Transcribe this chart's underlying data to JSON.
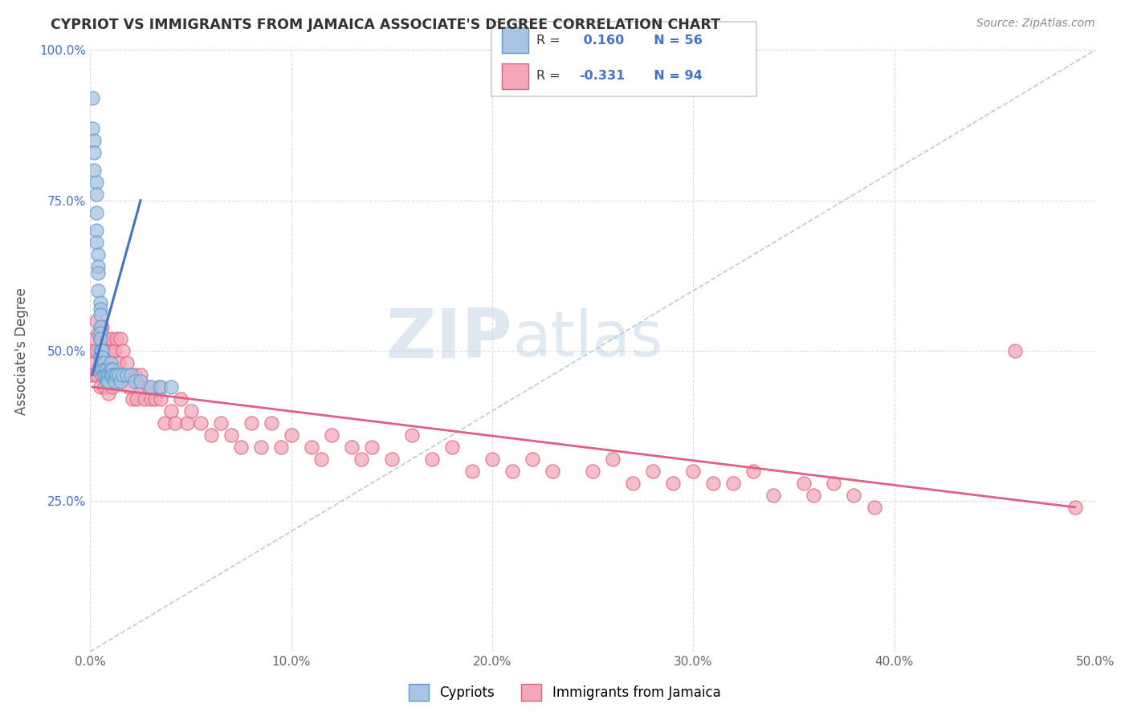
{
  "title": "CYPRIOT VS IMMIGRANTS FROM JAMAICA ASSOCIATE'S DEGREE CORRELATION CHART",
  "source": "Source: ZipAtlas.com",
  "ylabel": "Associate's Degree",
  "x_min": 0.0,
  "x_max": 0.5,
  "y_min": 0.0,
  "y_max": 1.0,
  "x_ticks": [
    0.0,
    0.1,
    0.2,
    0.3,
    0.4,
    0.5
  ],
  "x_tick_labels": [
    "0.0%",
    "10.0%",
    "20.0%",
    "30.0%",
    "40.0%",
    "50.0%"
  ],
  "y_ticks": [
    0.0,
    0.25,
    0.5,
    0.75,
    1.0
  ],
  "y_tick_labels": [
    "",
    "25.0%",
    "50.0%",
    "75.0%",
    "100.0%"
  ],
  "cypriot_color": "#a8c4e0",
  "cypriot_edge_color": "#5b9bd5",
  "jamaica_color": "#f4a7b9",
  "jamaica_edge_color": "#e06080",
  "cypriot_R": 0.16,
  "cypriot_N": 56,
  "jamaica_R": -0.331,
  "jamaica_N": 94,
  "cypriot_line_color": "#4472c4",
  "jamaica_line_color": "#e06080",
  "diagonal_color": "#b0c4de",
  "background_color": "#ffffff",
  "grid_color": "#d8d8d8",
  "legend_label_1": "Cypriots",
  "legend_label_2": "Immigrants from Jamaica",
  "cypriot_x": [
    0.001,
    0.001,
    0.002,
    0.002,
    0.002,
    0.003,
    0.003,
    0.003,
    0.003,
    0.003,
    0.004,
    0.004,
    0.004,
    0.004,
    0.005,
    0.005,
    0.005,
    0.005,
    0.005,
    0.005,
    0.005,
    0.005,
    0.006,
    0.006,
    0.006,
    0.006,
    0.006,
    0.006,
    0.007,
    0.007,
    0.007,
    0.007,
    0.008,
    0.008,
    0.008,
    0.008,
    0.009,
    0.009,
    0.01,
    0.01,
    0.01,
    0.011,
    0.011,
    0.012,
    0.012,
    0.013,
    0.014,
    0.015,
    0.016,
    0.018,
    0.02,
    0.022,
    0.025,
    0.03,
    0.035,
    0.04
  ],
  "cypriot_y": [
    0.92,
    0.87,
    0.85,
    0.83,
    0.8,
    0.78,
    0.76,
    0.73,
    0.7,
    0.68,
    0.66,
    0.64,
    0.63,
    0.6,
    0.58,
    0.57,
    0.56,
    0.54,
    0.53,
    0.52,
    0.5,
    0.49,
    0.5,
    0.5,
    0.49,
    0.48,
    0.47,
    0.47,
    0.48,
    0.47,
    0.46,
    0.46,
    0.47,
    0.46,
    0.46,
    0.45,
    0.46,
    0.45,
    0.48,
    0.47,
    0.46,
    0.47,
    0.46,
    0.46,
    0.45,
    0.46,
    0.46,
    0.45,
    0.46,
    0.46,
    0.46,
    0.45,
    0.45,
    0.44,
    0.44,
    0.44
  ],
  "jamaica_x": [
    0.001,
    0.001,
    0.002,
    0.002,
    0.003,
    0.003,
    0.003,
    0.004,
    0.004,
    0.005,
    0.005,
    0.005,
    0.006,
    0.006,
    0.007,
    0.007,
    0.008,
    0.008,
    0.009,
    0.009,
    0.01,
    0.01,
    0.011,
    0.011,
    0.012,
    0.013,
    0.013,
    0.014,
    0.015,
    0.015,
    0.016,
    0.017,
    0.018,
    0.019,
    0.02,
    0.021,
    0.022,
    0.023,
    0.025,
    0.026,
    0.027,
    0.029,
    0.03,
    0.032,
    0.034,
    0.035,
    0.037,
    0.04,
    0.042,
    0.045,
    0.048,
    0.05,
    0.055,
    0.06,
    0.065,
    0.07,
    0.075,
    0.08,
    0.085,
    0.09,
    0.095,
    0.1,
    0.11,
    0.115,
    0.12,
    0.13,
    0.135,
    0.14,
    0.15,
    0.16,
    0.17,
    0.18,
    0.19,
    0.2,
    0.21,
    0.22,
    0.23,
    0.25,
    0.26,
    0.27,
    0.28,
    0.29,
    0.3,
    0.31,
    0.32,
    0.33,
    0.34,
    0.355,
    0.36,
    0.37,
    0.38,
    0.39,
    0.46,
    0.49
  ],
  "jamaica_y": [
    0.5,
    0.46,
    0.52,
    0.48,
    0.55,
    0.5,
    0.46,
    0.53,
    0.47,
    0.52,
    0.48,
    0.44,
    0.54,
    0.46,
    0.5,
    0.44,
    0.52,
    0.46,
    0.5,
    0.43,
    0.52,
    0.46,
    0.5,
    0.44,
    0.5,
    0.52,
    0.46,
    0.48,
    0.52,
    0.46,
    0.5,
    0.46,
    0.48,
    0.44,
    0.46,
    0.42,
    0.46,
    0.42,
    0.46,
    0.44,
    0.42,
    0.44,
    0.42,
    0.42,
    0.44,
    0.42,
    0.38,
    0.4,
    0.38,
    0.42,
    0.38,
    0.4,
    0.38,
    0.36,
    0.38,
    0.36,
    0.34,
    0.38,
    0.34,
    0.38,
    0.34,
    0.36,
    0.34,
    0.32,
    0.36,
    0.34,
    0.32,
    0.34,
    0.32,
    0.36,
    0.32,
    0.34,
    0.3,
    0.32,
    0.3,
    0.32,
    0.3,
    0.3,
    0.32,
    0.28,
    0.3,
    0.28,
    0.3,
    0.28,
    0.28,
    0.3,
    0.26,
    0.28,
    0.26,
    0.28,
    0.26,
    0.24,
    0.5,
    0.24
  ],
  "cypriot_line_x": [
    0.001,
    0.025
  ],
  "cypriot_line_y": [
    0.46,
    0.75
  ],
  "jamaica_line_x": [
    0.001,
    0.49
  ],
  "jamaica_line_y": [
    0.44,
    0.24
  ]
}
